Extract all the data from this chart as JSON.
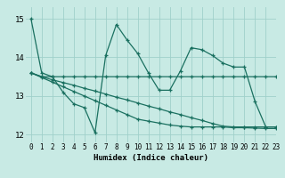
{
  "xlabel": "Humidex (Indice chaleur)",
  "xlim": [
    -0.5,
    23
  ],
  "ylim": [
    11.8,
    15.3
  ],
  "yticks": [
    12,
    13,
    14,
    15
  ],
  "xticks": [
    0,
    1,
    2,
    3,
    4,
    5,
    6,
    7,
    8,
    9,
    10,
    11,
    12,
    13,
    14,
    15,
    16,
    17,
    18,
    19,
    20,
    21,
    22,
    23
  ],
  "bg_color": "#c8eae4",
  "line_color": "#1a7060",
  "grid_color": "#a0d0ca",
  "lines": [
    [
      15.0,
      13.6,
      13.5,
      13.1,
      12.8,
      12.7,
      12.05,
      14.05,
      14.85,
      14.45,
      14.1,
      13.6,
      13.15,
      13.15,
      13.65,
      14.25,
      14.2,
      14.05,
      13.85,
      13.75,
      13.75,
      12.85,
      12.2,
      12.2
    ],
    [
      13.6,
      13.5,
      13.5,
      13.5,
      13.5,
      13.5,
      13.5,
      13.5,
      13.5,
      13.5,
      13.5,
      13.5,
      13.5,
      13.5,
      13.5,
      13.5,
      13.5,
      13.5,
      13.5,
      13.5,
      13.5,
      13.5,
      13.5,
      13.5
    ],
    [
      13.6,
      13.5,
      13.42,
      13.35,
      13.28,
      13.2,
      13.13,
      13.05,
      12.97,
      12.9,
      12.82,
      12.74,
      12.67,
      12.59,
      12.52,
      12.44,
      12.37,
      12.29,
      12.22,
      12.2,
      12.2,
      12.2,
      12.2,
      12.2
    ],
    [
      13.6,
      13.48,
      13.36,
      13.24,
      13.12,
      13.0,
      12.88,
      12.76,
      12.64,
      12.52,
      12.4,
      12.35,
      12.3,
      12.25,
      12.22,
      12.2,
      12.2,
      12.2,
      12.2,
      12.18,
      12.18,
      12.17,
      12.16,
      12.16
    ]
  ]
}
